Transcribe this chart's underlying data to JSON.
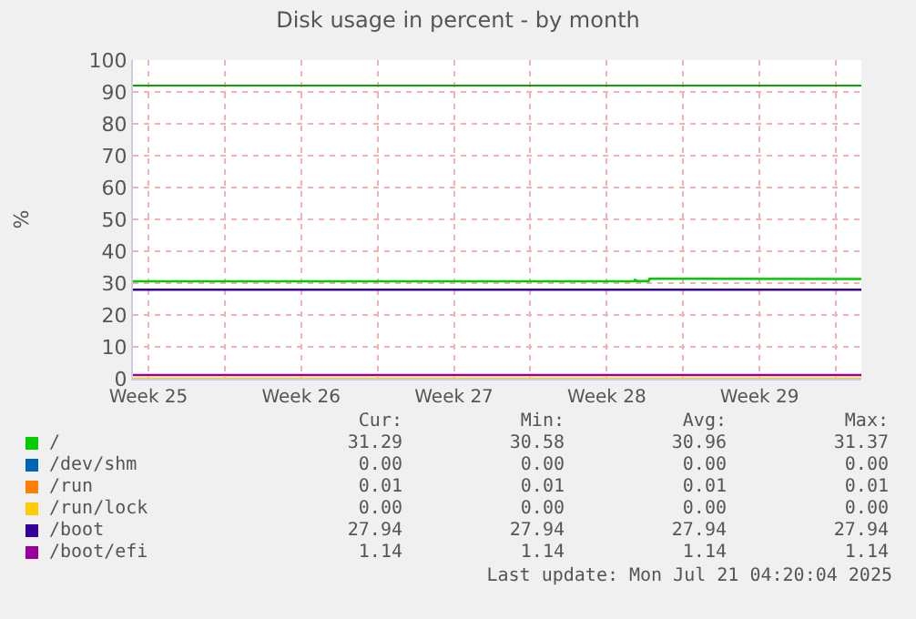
{
  "chart_data": {
    "type": "line",
    "title": "Disk usage in percent - by month",
    "ylabel": "%",
    "xlim": [
      "2025-06-18T19:00",
      "2025-07-22T04:00"
    ],
    "xticks": [
      {
        "value": "2025-06-19T12:00",
        "label": "Week 25"
      },
      {
        "value": "2025-06-23",
        "label": null
      },
      {
        "value": "2025-06-26T12:00",
        "label": "Week 26"
      },
      {
        "value": "2025-06-30",
        "label": null
      },
      {
        "value": "2025-07-03T12:00",
        "label": "Week 27"
      },
      {
        "value": "2025-07-07",
        "label": null
      },
      {
        "value": "2025-07-10T12:00",
        "label": "Week 28"
      },
      {
        "value": "2025-07-14",
        "label": null
      },
      {
        "value": "2025-07-17T12:00",
        "label": "Week 29"
      },
      {
        "value": "2025-07-21",
        "label": null
      }
    ],
    "ylim": [
      0,
      100
    ],
    "yticks": [
      0,
      10,
      20,
      30,
      40,
      50,
      60,
      70,
      80,
      90,
      100
    ],
    "grid": true,
    "legend": "bottom",
    "marker": "none",
    "line_style": "solid",
    "x": [
      "2025-06-18T19:00",
      "2025-07-22T04:00"
    ],
    "series": [
      {
        "name": "/",
        "color": "#00cc00",
        "x": [
          "2025-06-18T19:00",
          "2025-07-11T18:00",
          "2025-07-11T19:00",
          "2025-07-11T22:00",
          "2025-07-12T10:00",
          "2025-07-12T11:00",
          "2025-07-22T04:00"
        ],
        "values": [
          30.58,
          30.58,
          31.0,
          30.6,
          30.6,
          31.37,
          31.29
        ]
      },
      {
        "name": "/dev/shm",
        "color": "#0066b3",
        "values": [
          null,
          null
        ]
      },
      {
        "name": "/run",
        "color": "#ff8000",
        "values": [
          null,
          null
        ]
      },
      {
        "name": "/run/lock",
        "color": "#ffcc00",
        "values": [
          0,
          0
        ]
      },
      {
        "name": "/boot",
        "color": "#330099",
        "values": [
          27.94,
          27.94
        ]
      },
      {
        "name": "/boot/efi",
        "color": "#990099",
        "values": [
          1.14,
          1.14
        ]
      }
    ],
    "ref_lines": [
      {
        "axis": "y",
        "value": 92,
        "color": "#00aa00"
      }
    ],
    "annotations": [
      "Cur:",
      "Min:",
      "Avg:",
      "Max:",
      "31.29",
      "30.58",
      "30.96",
      "31.37",
      "0.00",
      "0.00",
      "0.00",
      "0.00",
      "0.01",
      "0.01",
      "0.01",
      "0.01",
      "0.00",
      "0.00",
      "0.00",
      "0.00",
      "27.94",
      "27.94",
      "27.94",
      "27.94",
      "1.14",
      "1.14",
      "1.14",
      "1.14",
      "Last update: Mon Jul 21 04:20:04 2025"
    ]
  }
}
